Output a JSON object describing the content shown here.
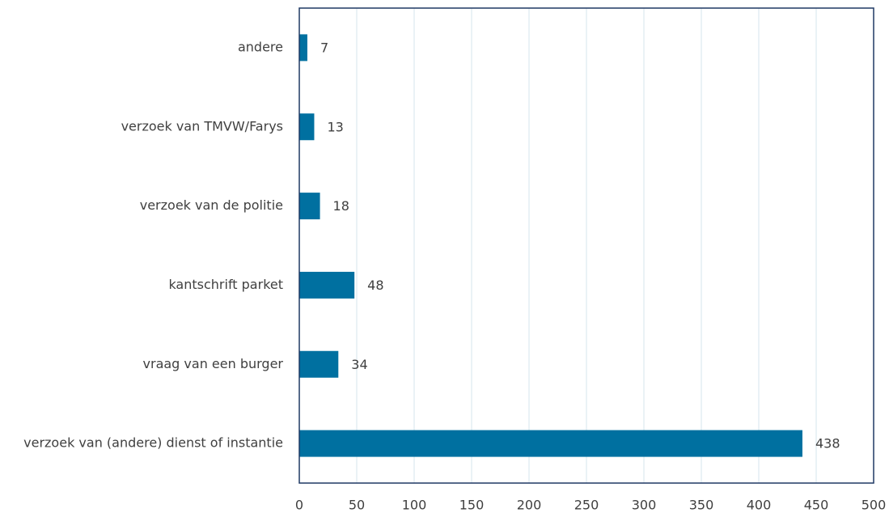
{
  "chart_data": {
    "type": "bar",
    "orientation": "horizontal",
    "categories": [
      "andere",
      "verzoek van TMVW/Farys",
      "verzoek van de politie",
      "kantschrift parket",
      "vraag van een burger",
      "verzoek van (andere) dienst of instantie"
    ],
    "values": [
      7,
      13,
      18,
      48,
      34,
      438
    ],
    "color": "#0070a0",
    "xlim": [
      0,
      500
    ],
    "xticks": [
      0,
      50,
      100,
      150,
      200,
      250,
      300,
      350,
      400,
      450,
      500
    ],
    "grid": true
  }
}
